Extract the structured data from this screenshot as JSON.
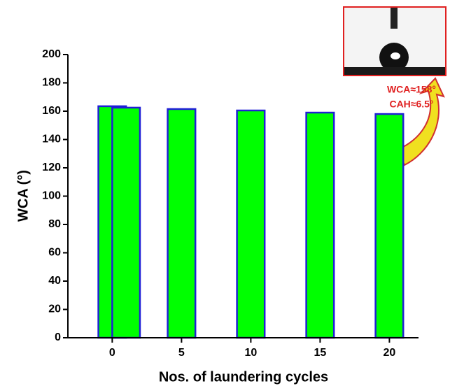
{
  "chart_data": {
    "type": "bar",
    "x": [
      0,
      1,
      5,
      10,
      15,
      20
    ],
    "values": [
      163.5,
      162.5,
      161.5,
      160.5,
      159,
      158
    ],
    "color": "#00ff00",
    "edgecolor": "#1f1fd6",
    "xlim": [
      -3.2,
      22.1
    ],
    "xticks": [
      0,
      5,
      10,
      15,
      20
    ],
    "ylim": [
      0,
      200
    ],
    "yticks": [
      0,
      20,
      40,
      60,
      80,
      100,
      120,
      140,
      160,
      180,
      200
    ],
    "xlabel": "Nos. of laundering cycles",
    "ylabel": "WCA (°)",
    "annotations": [
      "WCA≈158°",
      "CAH≈6.5°"
    ]
  }
}
